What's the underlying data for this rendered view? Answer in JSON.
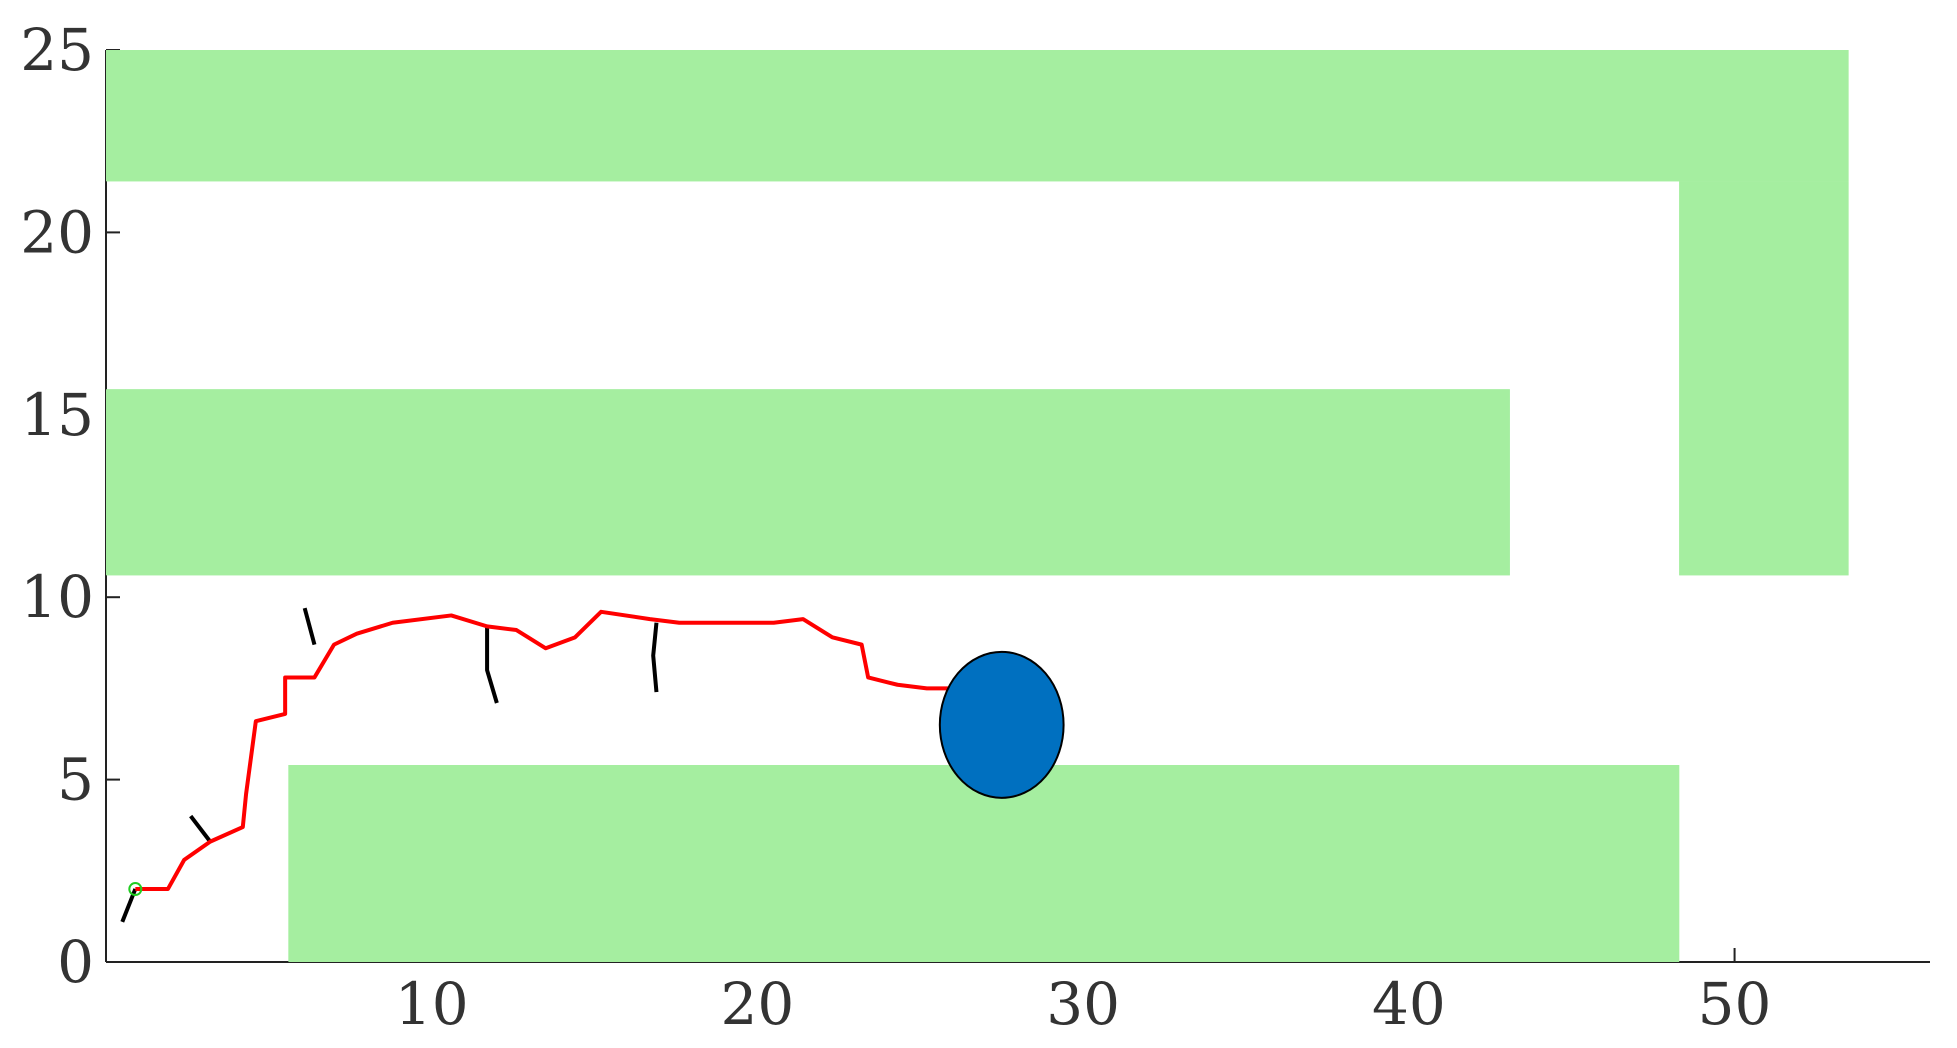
{
  "chart_data": {
    "type": "scatter",
    "title": "",
    "xlabel": "",
    "ylabel": "",
    "xlim": [
      0,
      56
    ],
    "ylim": [
      0,
      25
    ],
    "grid": false,
    "legend": "none",
    "x_ticks": [
      10,
      20,
      30,
      40,
      50
    ],
    "y_ticks": [
      0,
      5,
      10,
      15,
      20,
      25
    ],
    "x_tick_labels": [
      "10",
      "20",
      "30",
      "40",
      "50"
    ],
    "y_tick_labels": [
      "0",
      "5",
      "10",
      "15",
      "20",
      "25"
    ],
    "obstacles": [
      {
        "x0": 0,
        "y0": 21.4,
        "x1": 53.5,
        "y1": 25,
        "color": "#a5eea0"
      },
      {
        "x0": 48.3,
        "y0": 10.6,
        "x1": 53.5,
        "y1": 21.4,
        "color": "#a5eea0"
      },
      {
        "x0": 0,
        "y0": 10.6,
        "x1": 43.1,
        "y1": 15.7,
        "color": "#a5eea0"
      },
      {
        "x0": 5.6,
        "y0": 0,
        "x1": 48.3,
        "y1": 5.4,
        "color": "#a5eea0"
      }
    ],
    "path": {
      "color": "#ff0000",
      "x": [
        0.9,
        1.9,
        2.4,
        3.2,
        4.2,
        4.3,
        4.6,
        5.5,
        5.5,
        6.4,
        7.0,
        7.7,
        8.8,
        10.6,
        11.7,
        12.6,
        13.5,
        14.4,
        15.2,
        16.7,
        17.6,
        18.6,
        19.6,
        20.5,
        21.4,
        22.3,
        23.2,
        23.4,
        24.3,
        25.2,
        26.2,
        26.9
      ],
      "y": [
        2.0,
        2.0,
        2.8,
        3.3,
        3.7,
        4.6,
        6.6,
        6.8,
        7.8,
        7.8,
        8.7,
        9.0,
        9.3,
        9.5,
        9.2,
        9.1,
        8.6,
        8.9,
        9.6,
        9.4,
        9.3,
        9.3,
        9.3,
        9.3,
        9.4,
        8.9,
        8.7,
        7.8,
        7.6,
        7.5,
        7.5,
        7.3
      ]
    },
    "start_marker": {
      "x": 0.9,
      "y": 2.0,
      "color": "#22cc22"
    },
    "goal_marker": {
      "x": 27.5,
      "y": 6.5,
      "rx": 1.9,
      "ry": 2.0,
      "color": "#0070c0"
    },
    "branches": [
      {
        "color": "#000000",
        "x": [
          0.9,
          0.5
        ],
        "y": [
          2.0,
          1.1
        ]
      },
      {
        "color": "#000000",
        "x": [
          3.2,
          2.6
        ],
        "y": [
          3.3,
          4.0
        ]
      },
      {
        "color": "#000000",
        "x": [
          6.4,
          6.1
        ],
        "y": [
          8.7,
          9.7
        ]
      },
      {
        "color": "#000000",
        "x": [
          11.7,
          11.7,
          12.0
        ],
        "y": [
          9.2,
          8.0,
          7.1
        ]
      },
      {
        "color": "#000000",
        "x": [
          16.9,
          16.8,
          16.9
        ],
        "y": [
          9.3,
          8.4,
          7.4
        ]
      }
    ]
  }
}
